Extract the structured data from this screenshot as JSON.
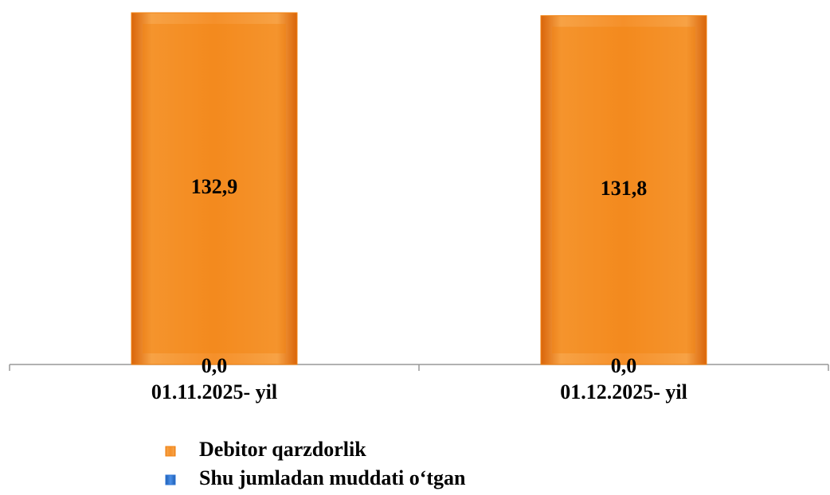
{
  "chart_data": {
    "type": "bar",
    "categories": [
      "01.11.2025- yil",
      "01.12.2025- yil"
    ],
    "series": [
      {
        "name": "Debitor qarzdorlik",
        "color": "#f2820f",
        "values": [
          132.9,
          131.8
        ],
        "value_labels": [
          "132,9",
          "131,8"
        ]
      },
      {
        "name": "Shu jumladan muddati o‘tgan",
        "color": "#2e75d6",
        "values": [
          0,
          0
        ],
        "value_labels": [
          "0,0",
          "0,0"
        ]
      }
    ],
    "legend": "bottom"
  }
}
